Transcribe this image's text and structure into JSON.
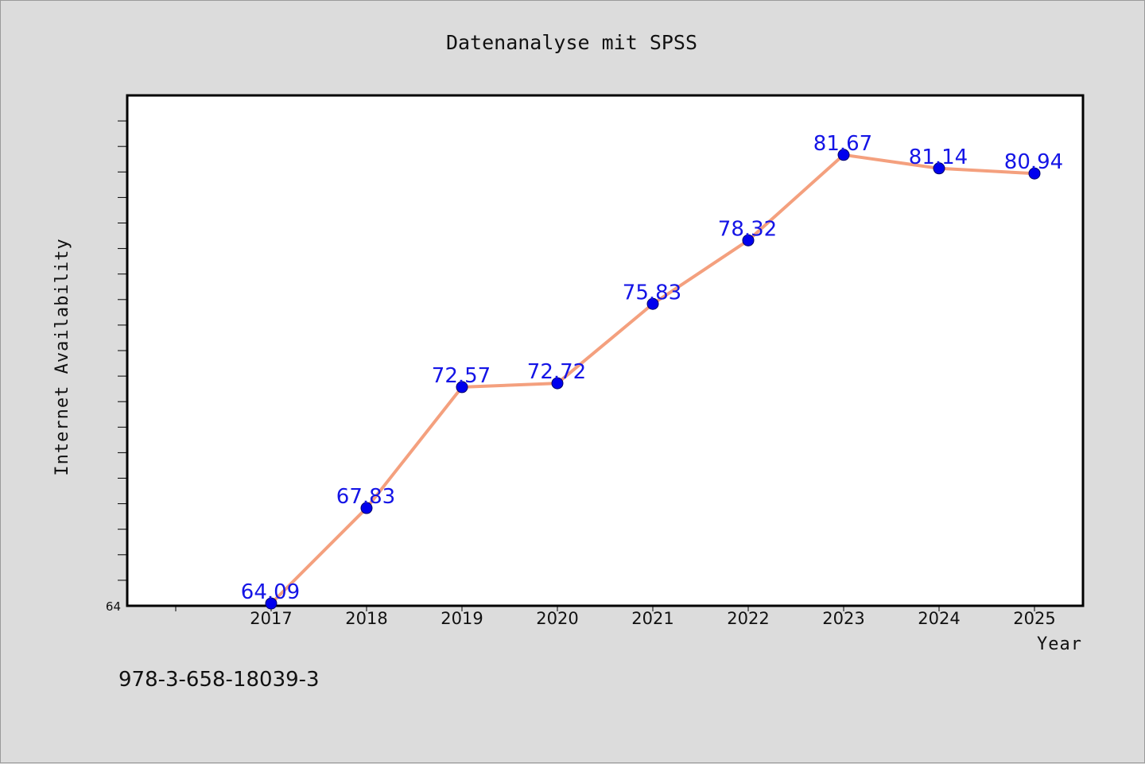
{
  "chart_data": {
    "type": "line",
    "title": "Datenanalyse mit SPSS",
    "xlabel": "Year",
    "ylabel": "Internet Availability",
    "x": [
      "2017",
      "2018",
      "2019",
      "2020",
      "2021",
      "2022",
      "2023",
      "2024",
      "2025"
    ],
    "series": [
      {
        "values": [
          64.09,
          67.83,
          72.57,
          72.72,
          75.83,
          78.32,
          81.67,
          81.14,
          80.94
        ],
        "labels": [
          "64.09",
          "67.83",
          "72.57",
          "72.72",
          "75.83",
          "78.32",
          "81.67",
          "81.14",
          "80.94"
        ]
      }
    ],
    "ylim": [
      64,
      84
    ],
    "yticks_labeled": [
      "64"
    ],
    "line_color": "#f4a07e",
    "marker_color": "#0000ee",
    "label_color": "#1414e6",
    "grid": false
  },
  "footnote": "978-3-658-18039-3"
}
